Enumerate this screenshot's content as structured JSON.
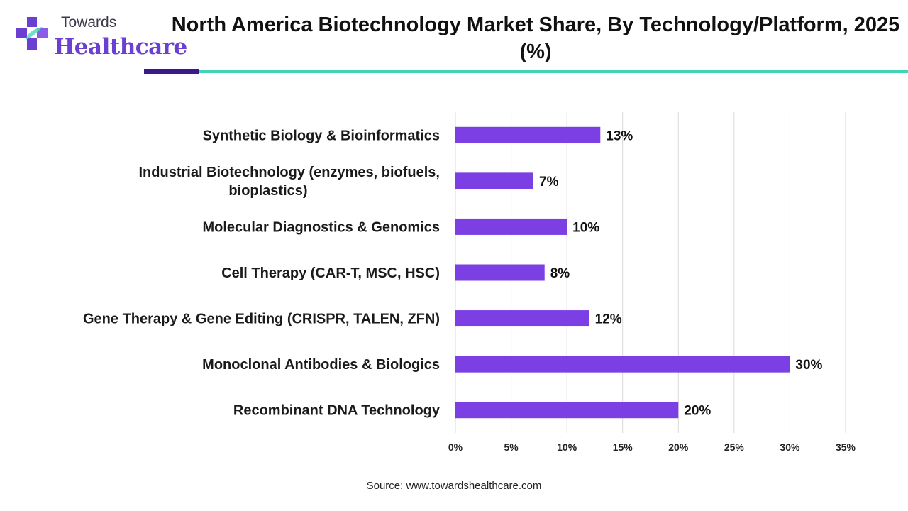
{
  "logo": {
    "line1": "Towards",
    "line2": "Healthcare",
    "colors": {
      "purple": "#6b3fd1",
      "teal": "#43d3b5"
    }
  },
  "title": "North America Biotechnology Market Share, By Technology/Platform, 2025 (%)",
  "source": "Source: www.towardshealthcare.com",
  "chart_data": {
    "type": "bar",
    "orientation": "horizontal",
    "title": "North America Biotechnology Market Share, By Technology/Platform, 2025 (%)",
    "categories": [
      [
        "Synthetic Biology & Bioinformatics"
      ],
      [
        "Industrial Biotechnology (enzymes, biofuels,",
        "bioplastics)"
      ],
      [
        "Molecular Diagnostics & Genomics"
      ],
      [
        "Cell Therapy (CAR-T, MSC, HSC)"
      ],
      [
        "Gene Therapy & Gene Editing (CRISPR, TALEN, ZFN)"
      ],
      [
        "Monoclonal Antibodies & Biologics"
      ],
      [
        "Recombinant DNA Technology"
      ]
    ],
    "values": [
      13,
      7,
      10,
      8,
      12,
      30,
      20
    ],
    "value_labels": [
      "13%",
      "7%",
      "10%",
      "8%",
      "12%",
      "30%",
      "20%"
    ],
    "xlim": [
      0,
      35
    ],
    "xticks": [
      0,
      5,
      10,
      15,
      20,
      25,
      30,
      35
    ],
    "xtick_labels": [
      "0%",
      "5%",
      "10%",
      "15%",
      "20%",
      "25%",
      "30%",
      "35%"
    ],
    "grid": "vertical",
    "bar_color": "#7b3fe4",
    "gridline_color": "#d9d9d9"
  }
}
